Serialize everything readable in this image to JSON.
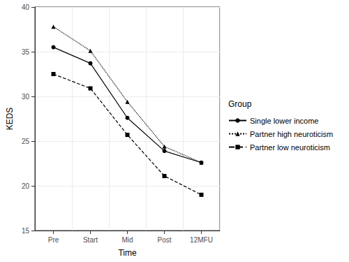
{
  "chart_data": {
    "type": "line",
    "x_label": "Time",
    "y_label": "KEDS",
    "categories": [
      "Pre",
      "Start",
      "Mid",
      "Post",
      "12MFU"
    ],
    "series": [
      {
        "name": "Single lower income",
        "color": "#000000",
        "marker": "circle",
        "line_style": "solid",
        "values": [
          35.5,
          33.7,
          27.6,
          23.9,
          22.6
        ]
      },
      {
        "name": "Partner high neuroticism",
        "color": "#000000",
        "marker": "triangle",
        "line_style": "dotted",
        "values": [
          37.8,
          35.1,
          29.4,
          24.4,
          22.6
        ]
      },
      {
        "name": "Partner low neuroticism",
        "color": "#000000",
        "marker": "square",
        "line_style": "dashed",
        "values": [
          32.5,
          30.9,
          25.7,
          21.1,
          19.0
        ]
      }
    ],
    "ylim": [
      15,
      40
    ],
    "yticks": [
      15,
      20,
      25,
      30,
      35,
      40
    ],
    "grid": true,
    "legend": "right",
    "legend_title": "Group"
  }
}
